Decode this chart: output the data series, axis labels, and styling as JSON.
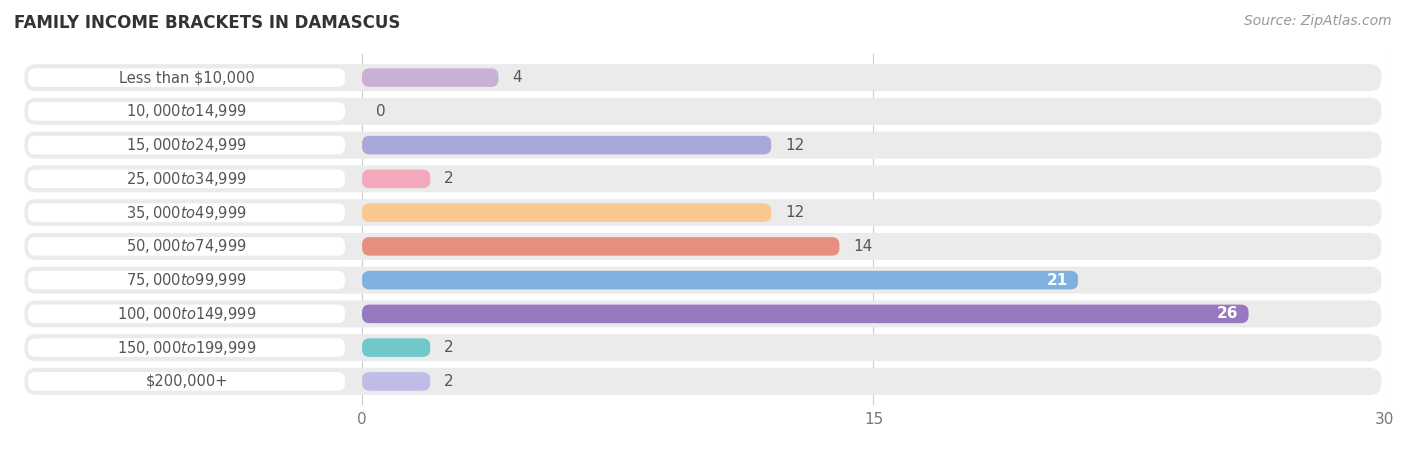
{
  "title": "FAMILY INCOME BRACKETS IN DAMASCUS",
  "source": "Source: ZipAtlas.com",
  "categories": [
    "Less than $10,000",
    "$10,000 to $14,999",
    "$15,000 to $24,999",
    "$25,000 to $34,999",
    "$35,000 to $49,999",
    "$50,000 to $74,999",
    "$75,000 to $99,999",
    "$100,000 to $149,999",
    "$150,000 to $199,999",
    "$200,000+"
  ],
  "values": [
    4,
    0,
    12,
    2,
    12,
    14,
    21,
    26,
    2,
    2
  ],
  "bar_colors": [
    "#c9b0d5",
    "#70c8c8",
    "#a8a8d8",
    "#f4a8bc",
    "#f9c890",
    "#e89080",
    "#80b0e0",
    "#9878c0",
    "#70c8c8",
    "#c0bce8"
  ],
  "xlim": [
    0,
    30
  ],
  "xticks": [
    0,
    15,
    30
  ],
  "label_inside_threshold": 15,
  "background_color": "#ffffff",
  "row_bg_color": "#ebebeb",
  "title_fontsize": 12,
  "source_fontsize": 10,
  "tick_fontsize": 11,
  "value_fontsize": 11,
  "label_fontsize": 10.5,
  "label_color": "#555555",
  "value_color_inside": "#ffffff",
  "value_color_outside": "#555555"
}
